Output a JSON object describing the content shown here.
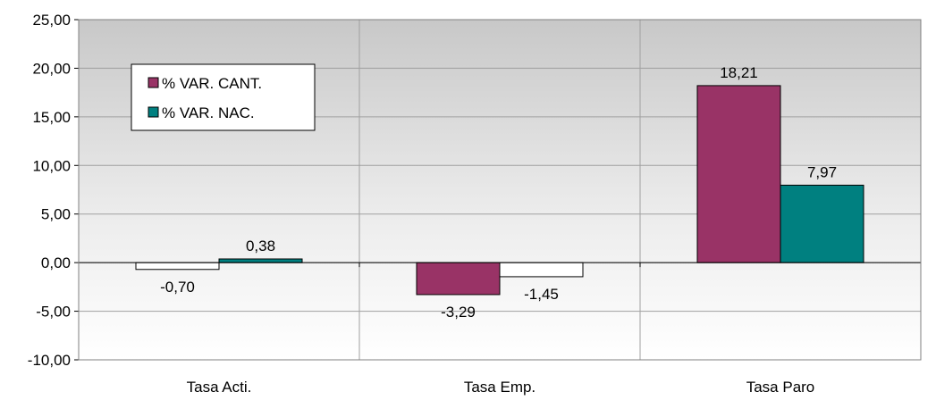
{
  "chart_data": {
    "type": "bar",
    "categories": [
      "Tasa  Acti.",
      "Tasa Emp.",
      "Tasa Paro"
    ],
    "series": [
      {
        "name": "% VAR. CANT.",
        "values": [
          -0.7,
          -3.29,
          18.21
        ],
        "labels": [
          "-0,70",
          "-3,29",
          "18,21"
        ],
        "color": "#993366"
      },
      {
        "name": "% VAR. NAC.",
        "values": [
          0.38,
          -1.45,
          7.97
        ],
        "labels": [
          "0,38",
          "-1,45",
          "7,97"
        ],
        "color": "#008080"
      }
    ],
    "ylim": [
      -10,
      25
    ],
    "yticks": [
      25,
      20,
      15,
      10,
      5,
      0,
      -5,
      -10
    ],
    "ytick_labels": [
      "25,00",
      "20,00",
      "15,00",
      "10,00",
      "5,00",
      "0,00",
      "-5,00",
      "-10,00"
    ],
    "grid": true,
    "legend": "top-left",
    "title": "",
    "xlabel": "",
    "ylabel": ""
  }
}
